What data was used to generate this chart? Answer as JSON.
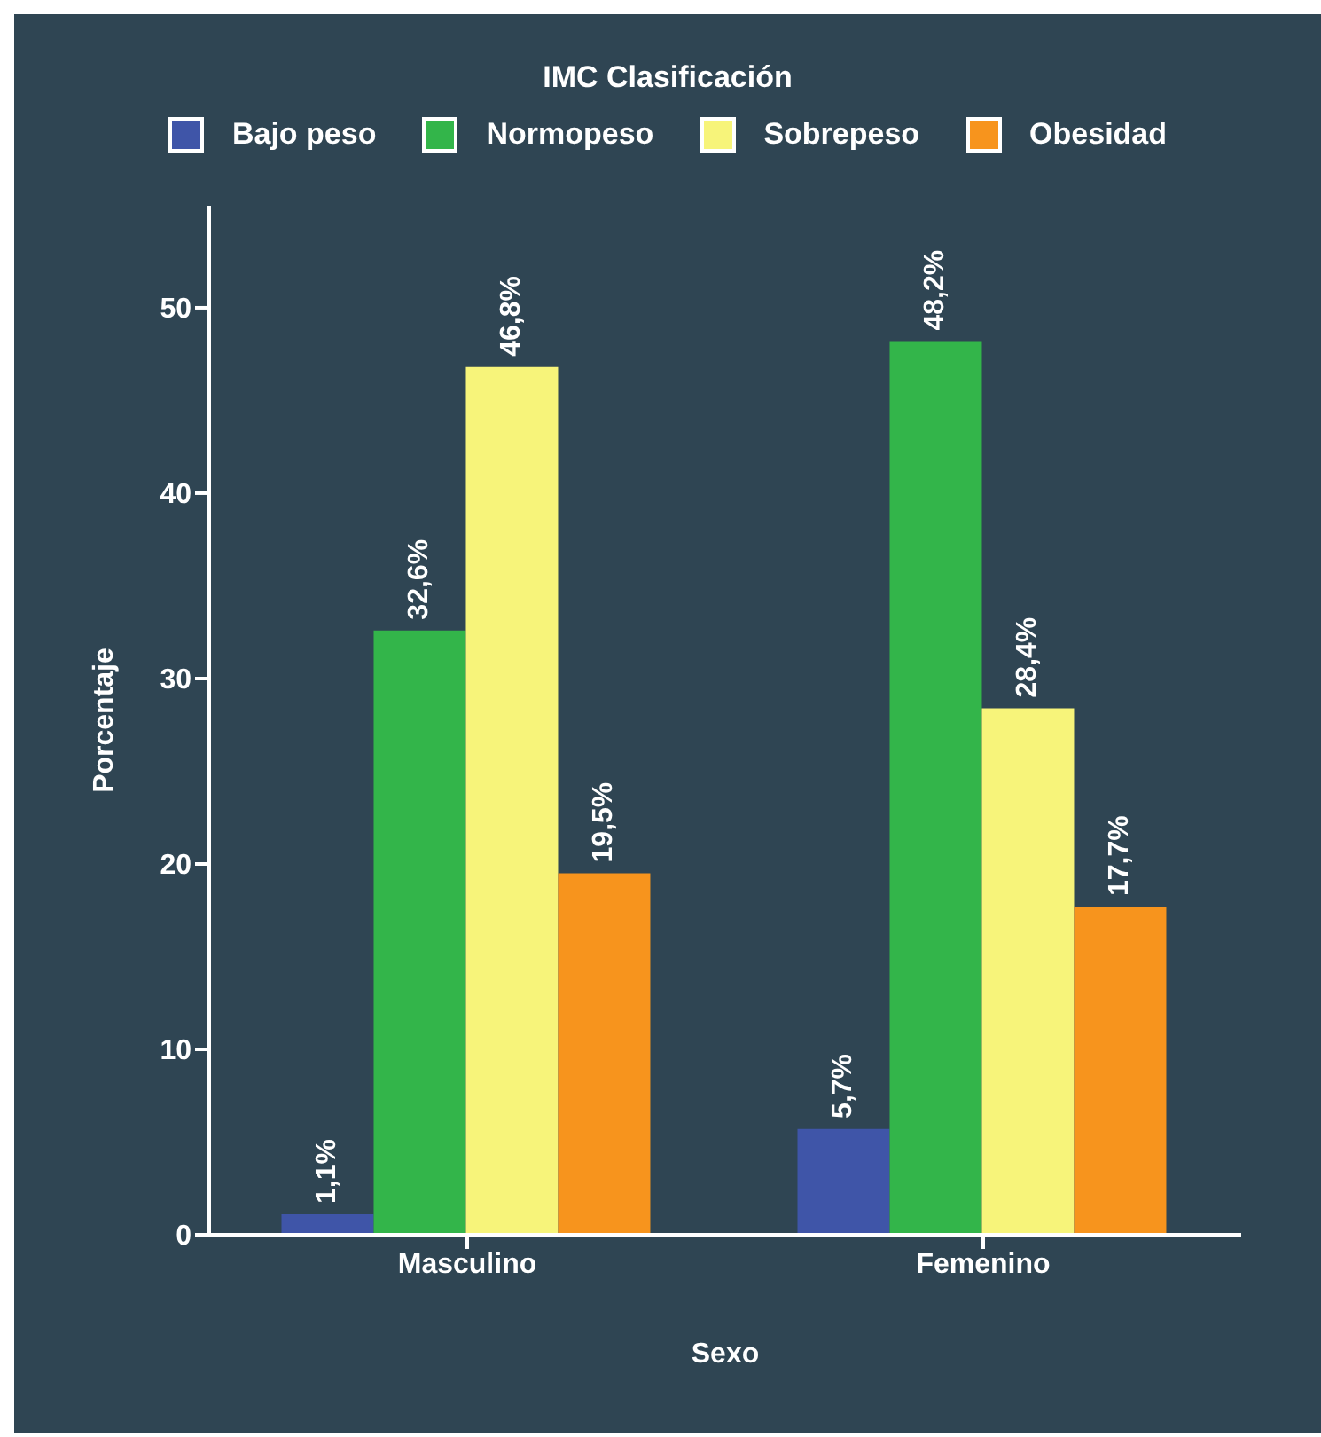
{
  "chart_data": {
    "type": "bar",
    "legend_title": "IMC Clasificación",
    "xlabel": "Sexo",
    "ylabel": "Porcentaje",
    "categories": [
      "Masculino",
      "Femenino"
    ],
    "series": [
      {
        "name": "Bajo peso",
        "color": "#3f55a8",
        "values": [
          1.1,
          5.7
        ],
        "value_labels": [
          "1,1%",
          "5,7%"
        ]
      },
      {
        "name": "Normopeso",
        "color": "#33b54a",
        "values": [
          32.6,
          48.2
        ],
        "value_labels": [
          "32,6%",
          "48,2%"
        ]
      },
      {
        "name": "Sobrepeso",
        "color": "#f7f47a",
        "values": [
          46.8,
          28.4
        ],
        "value_labels": [
          "46,8%",
          "28,4%"
        ]
      },
      {
        "name": "Obesidad",
        "color": "#f7941d",
        "values": [
          19.5,
          17.7
        ],
        "value_labels": [
          "19,5%",
          "17,7%"
        ]
      }
    ],
    "ylim": [
      0,
      55.5
    ],
    "yticks": [
      0,
      10,
      20,
      30,
      40,
      50
    ],
    "grid": false,
    "legend": "top"
  }
}
